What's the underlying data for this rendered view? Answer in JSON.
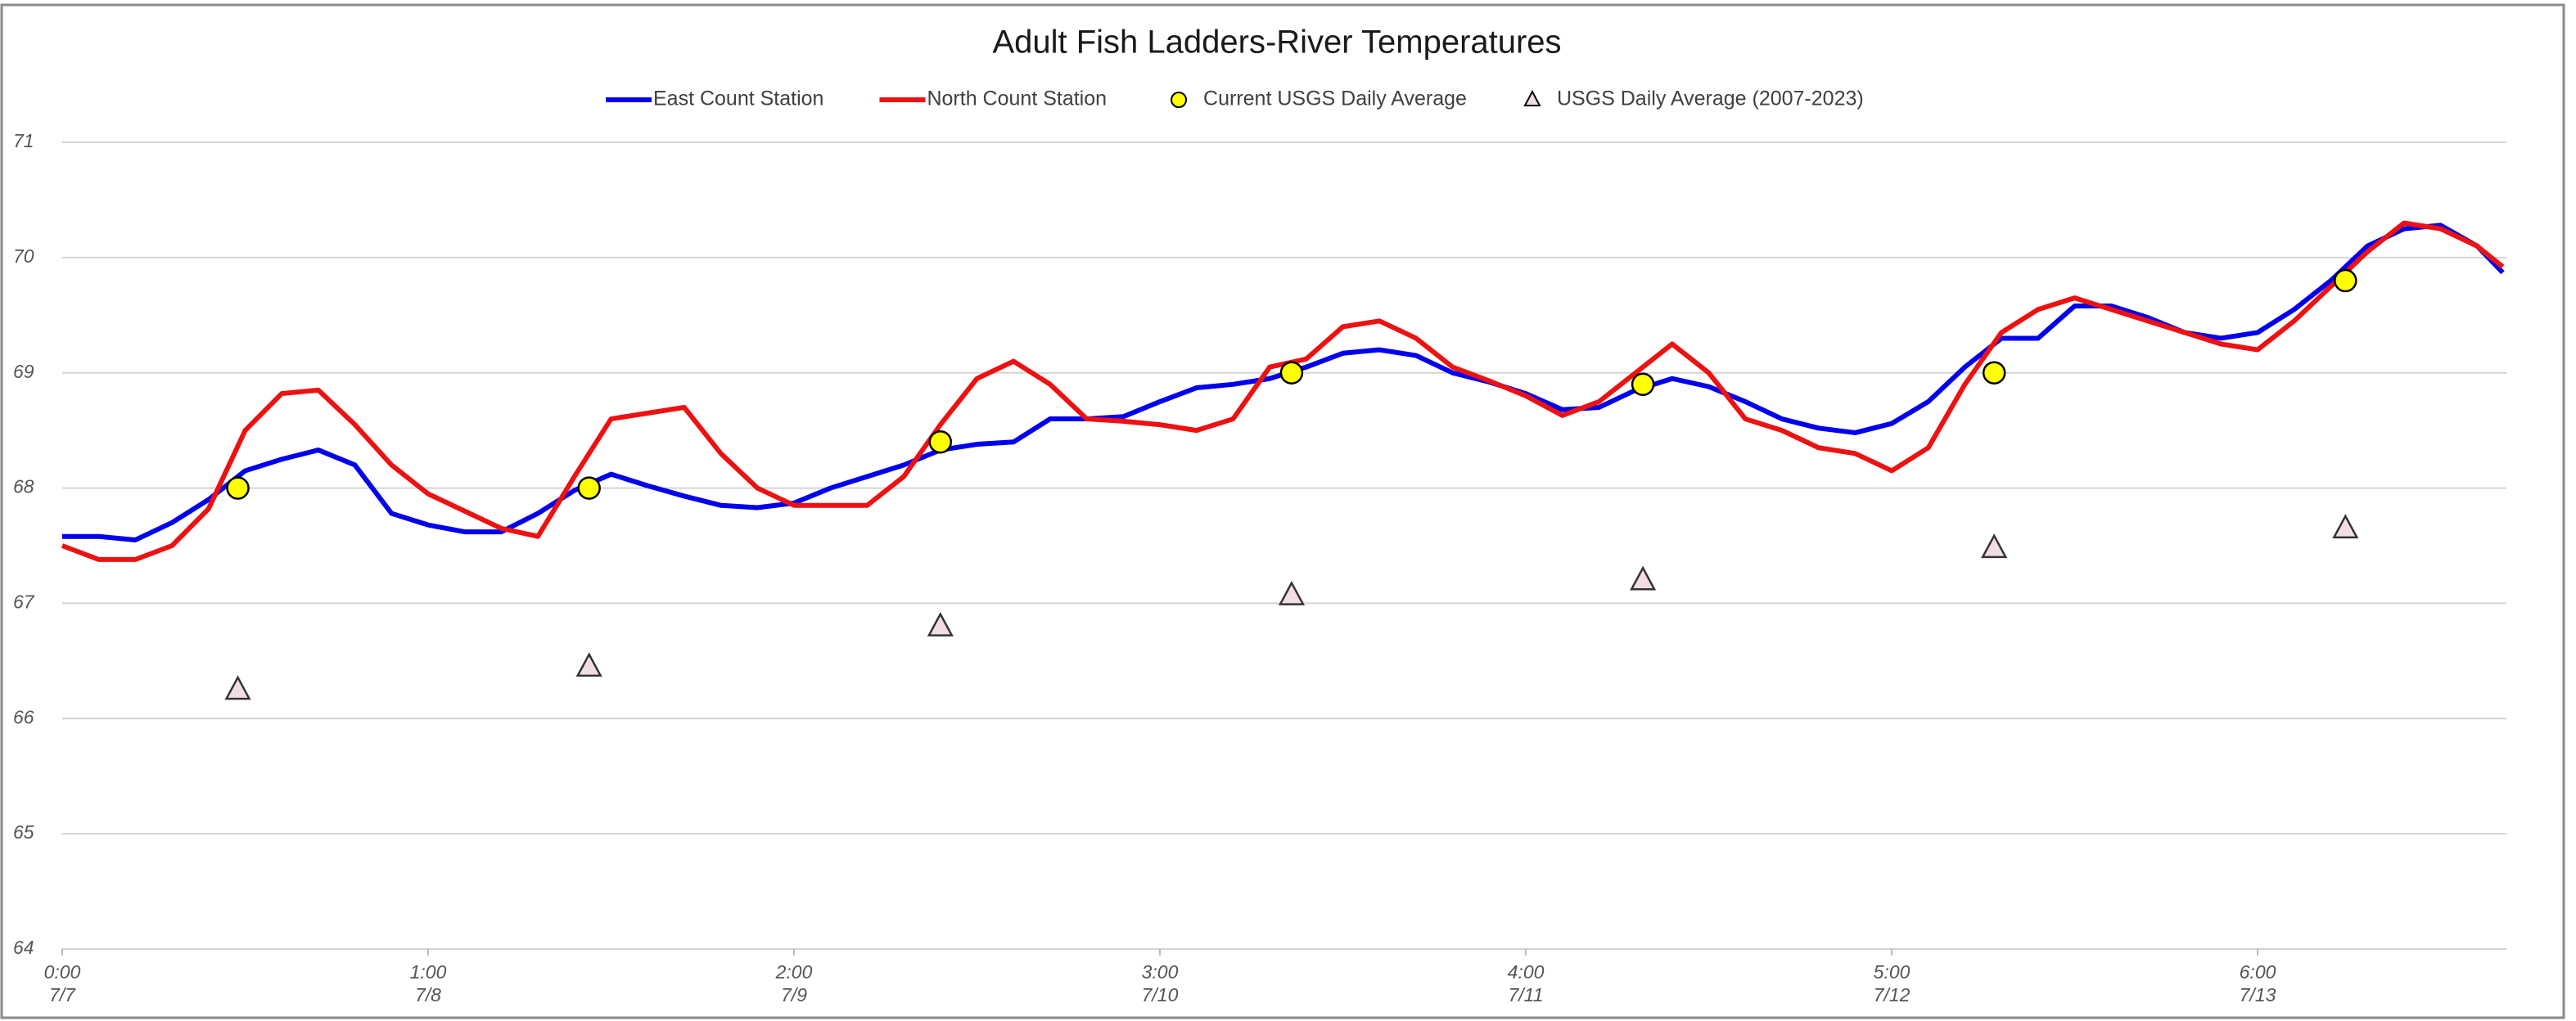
{
  "chart_data": {
    "type": "line",
    "title": "Adult Fish Ladders-River Temperatures",
    "x": [
      0,
      0.1,
      0.2,
      0.3,
      0.4,
      0.5,
      0.6,
      0.7,
      0.8,
      0.9,
      1,
      1.1,
      1.2,
      1.3,
      1.4,
      1.5,
      1.6,
      1.7,
      1.8,
      1.9,
      2,
      2.1,
      2.2,
      2.3,
      2.4,
      2.5,
      2.6,
      2.7,
      2.8,
      2.9,
      3,
      3.1,
      3.2,
      3.3,
      3.4,
      3.5,
      3.6,
      3.7,
      3.8,
      3.9,
      4,
      4.1,
      4.2,
      4.3,
      4.4,
      4.5,
      4.6,
      4.7,
      4.8,
      4.9,
      5,
      5.1,
      5.2,
      5.3,
      5.4,
      5.5,
      5.6,
      5.7,
      5.8,
      5.9,
      6,
      6.1,
      6.2,
      6.3,
      6.4,
      6.5,
      6.6,
      6.67
    ],
    "series": [
      {
        "name": "East Count Station",
        "color": "#0000ee",
        "values": [
          67.58,
          67.58,
          67.55,
          67.7,
          67.9,
          68.15,
          68.25,
          68.33,
          68.2,
          67.78,
          67.68,
          67.62,
          67.62,
          67.78,
          67.98,
          68.12,
          68.02,
          67.93,
          67.85,
          67.83,
          67.87,
          68.0,
          68.1,
          68.2,
          68.33,
          68.38,
          68.4,
          68.6,
          68.6,
          68.62,
          68.75,
          68.87,
          68.9,
          68.95,
          69.05,
          69.17,
          69.2,
          69.15,
          69.0,
          68.92,
          68.82,
          68.68,
          68.7,
          68.85,
          68.95,
          68.88,
          68.75,
          68.6,
          68.52,
          68.48,
          68.56,
          68.75,
          69.05,
          69.3,
          69.3,
          69.58,
          69.58,
          69.48,
          69.35,
          69.3,
          69.35,
          69.55,
          69.8,
          70.1,
          70.25,
          70.28,
          70.1,
          69.87
        ]
      },
      {
        "name": "North Count Station",
        "color": "#ee1111",
        "values": [
          67.5,
          67.38,
          67.38,
          67.5,
          67.82,
          68.5,
          68.82,
          68.85,
          68.55,
          68.2,
          67.95,
          67.8,
          67.65,
          67.58,
          68.1,
          68.6,
          68.65,
          68.7,
          68.3,
          68.0,
          67.85,
          67.85,
          67.85,
          68.1,
          68.55,
          68.95,
          69.1,
          68.9,
          68.6,
          68.58,
          68.55,
          68.5,
          68.6,
          69.05,
          69.12,
          69.4,
          69.45,
          69.3,
          69.05,
          68.93,
          68.8,
          68.63,
          68.75,
          69.0,
          69.25,
          69.0,
          68.6,
          68.5,
          68.35,
          68.3,
          68.15,
          68.35,
          68.9,
          69.35,
          69.55,
          69.65,
          69.55,
          69.45,
          69.35,
          69.25,
          69.2,
          69.45,
          69.75,
          70.05,
          70.3,
          70.25,
          70.1,
          69.92
        ]
      }
    ],
    "points": [
      {
        "name": "Current USGS Daily Average",
        "marker": "circle",
        "color": "#ffff00",
        "x": [
          0.48,
          1.44,
          2.4,
          3.36,
          4.32,
          5.28,
          6.24
        ],
        "values": [
          68.0,
          68.0,
          68.4,
          69.0,
          68.9,
          69.0,
          69.8
        ]
      },
      {
        "name": "USGS Daily Average (2007-2023)",
        "marker": "triangle",
        "color": "#f2dde6",
        "x": [
          0.48,
          1.44,
          2.4,
          3.36,
          4.32,
          5.28,
          6.24
        ],
        "values": [
          66.25,
          66.45,
          66.8,
          67.07,
          67.2,
          67.48,
          67.65
        ]
      }
    ],
    "xlim": [
      0,
      6.68
    ],
    "xticks": [
      {
        "value": 0,
        "label": "0:00"
      },
      {
        "value": 1,
        "label": "1:00"
      },
      {
        "value": 2,
        "label": "2:00"
      },
      {
        "value": 3,
        "label": "3:00"
      },
      {
        "value": 4,
        "label": "4:00"
      },
      {
        "value": 5,
        "label": "5:00"
      },
      {
        "value": 6,
        "label": "6:00"
      }
    ],
    "xtick_dates": [
      "7/7",
      "7/8",
      "7/9",
      "7/10",
      "7/11",
      "7/12",
      "7/13"
    ],
    "ylim": [
      64,
      71
    ],
    "yticks": [
      64,
      65,
      66,
      67,
      68,
      69,
      70,
      71
    ],
    "grid": true,
    "legend": "top"
  }
}
